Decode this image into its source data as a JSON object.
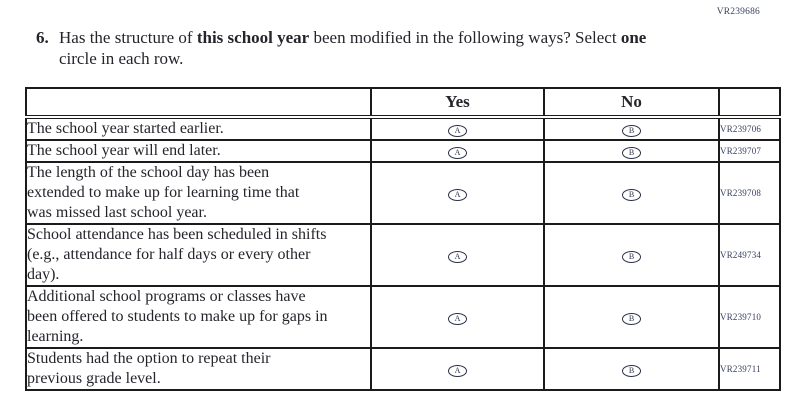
{
  "page": {
    "top_right_code": "VR239686"
  },
  "question": {
    "number": "6.",
    "segments": [
      {
        "text": "Has the structure of ",
        "bold": false
      },
      {
        "text": "this school year",
        "bold": true
      },
      {
        "text": " been modified in the following ways? Select ",
        "bold": false
      },
      {
        "text": "one",
        "bold": true
      },
      {
        "text": "\ncircle in each row.",
        "bold": false
      }
    ]
  },
  "table": {
    "columns": [
      {
        "header": "",
        "type": "label"
      },
      {
        "header": "Yes",
        "type": "option",
        "bubble": "A"
      },
      {
        "header": "No",
        "type": "option",
        "bubble": "B"
      },
      {
        "header": "",
        "type": "code"
      }
    ],
    "rows": [
      {
        "label": "The school year started earlier.",
        "code": "VR239706"
      },
      {
        "label": "The school year will end later.",
        "code": "VR239707"
      },
      {
        "label": "The length of the school day has been\nextended to make up for learning time that\nwas missed last school year.",
        "code": "VR239708"
      },
      {
        "label": "School attendance has been scheduled in shifts\n(e.g., attendance for half days or every other\nday).",
        "code": "VR249734"
      },
      {
        "label": "Additional school programs or classes have\nbeen offered to students to make up for gaps in\nlearning.",
        "code": "VR239710"
      },
      {
        "label": "Students had the option to repeat their\nprevious grade level.",
        "code": "VR239711"
      }
    ]
  },
  "colors": {
    "text": "#24252b",
    "code_text": "#3a4161",
    "border": "#1b1b1b"
  }
}
